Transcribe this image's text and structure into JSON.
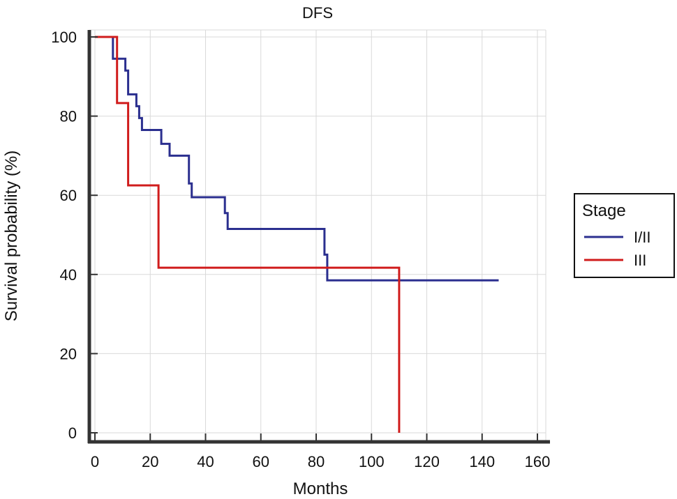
{
  "chart_data": {
    "type": "line",
    "subtype": "kaplan-meier step",
    "title": "DFS",
    "xlabel": "Months",
    "ylabel": "Survival probability (%)",
    "xlim": [
      0,
      160
    ],
    "ylim": [
      0,
      100
    ],
    "x_ticks": [
      0,
      20,
      40,
      60,
      80,
      100,
      120,
      140,
      160
    ],
    "y_ticks": [
      0,
      20,
      40,
      60,
      80,
      100
    ],
    "grid": true,
    "legend": {
      "title": "Stage",
      "placement": "right-outside"
    },
    "series": [
      {
        "name": "I/II",
        "color": "#2b2f8f",
        "points": [
          [
            0,
            100
          ],
          [
            6.5,
            100
          ],
          [
            6.5,
            94.5
          ],
          [
            11,
            94.5
          ],
          [
            11,
            91.5
          ],
          [
            12,
            91.5
          ],
          [
            12,
            85.5
          ],
          [
            15,
            85.5
          ],
          [
            15,
            82.5
          ],
          [
            16,
            82.5
          ],
          [
            16,
            79.5
          ],
          [
            17,
            79.5
          ],
          [
            17,
            76.5
          ],
          [
            24,
            76.5
          ],
          [
            24,
            73
          ],
          [
            27,
            73
          ],
          [
            27,
            70
          ],
          [
            34,
            70
          ],
          [
            34,
            63
          ],
          [
            35,
            63
          ],
          [
            35,
            59.5
          ],
          [
            47,
            59.5
          ],
          [
            47,
            55.5
          ],
          [
            48,
            55.5
          ],
          [
            48,
            51.5
          ],
          [
            83,
            51.5
          ],
          [
            83,
            45
          ],
          [
            84,
            45
          ],
          [
            84,
            38.5
          ],
          [
            146,
            38.5
          ]
        ]
      },
      {
        "name": "III",
        "color": "#d01c1c",
        "points": [
          [
            0,
            100
          ],
          [
            8,
            100
          ],
          [
            8,
            83.3
          ],
          [
            12,
            83.3
          ],
          [
            12,
            62.5
          ],
          [
            23,
            62.5
          ],
          [
            23,
            41.7
          ],
          [
            110,
            41.7
          ],
          [
            110,
            0
          ]
        ]
      }
    ]
  }
}
